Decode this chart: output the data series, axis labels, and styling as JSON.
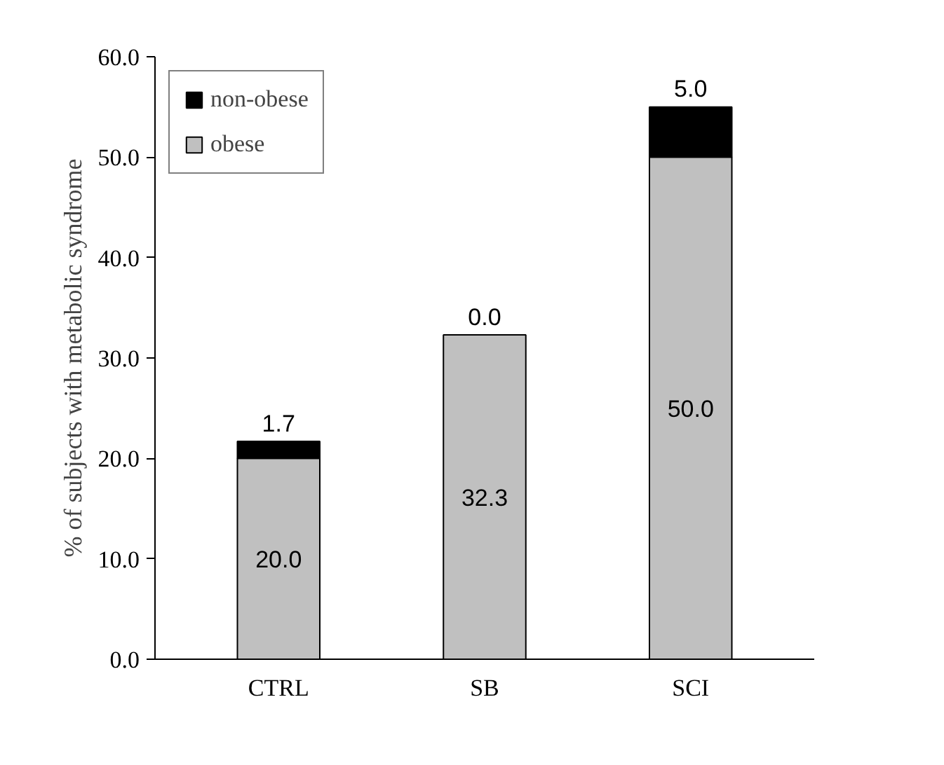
{
  "chart_data": {
    "type": "bar",
    "stacked": true,
    "ylabel": "% of subjects with metabolic syndrome",
    "categories": [
      "CTRL",
      "SB",
      "SCI"
    ],
    "series": [
      {
        "name": "obese",
        "color": "#c0c0c0",
        "values": [
          20.0,
          32.3,
          50.0
        ],
        "value_labels": [
          "20.0",
          "32.3",
          "50.0"
        ]
      },
      {
        "name": "non-obese",
        "color": "#000000",
        "values": [
          1.7,
          0.0,
          5.0
        ],
        "value_labels": [
          "1.7",
          "0.0",
          "5.0"
        ]
      }
    ],
    "ylim": [
      0,
      60
    ],
    "yticks": [
      {
        "value": 0,
        "label": "0.0"
      },
      {
        "value": 10,
        "label": "10.0"
      },
      {
        "value": 20,
        "label": "20.0"
      },
      {
        "value": 30,
        "label": "30.0"
      },
      {
        "value": 40,
        "label": "40.0"
      },
      {
        "value": 50,
        "label": "50.0"
      },
      {
        "value": 60,
        "label": "60.0"
      }
    ],
    "grid": false,
    "legend": "top left"
  }
}
